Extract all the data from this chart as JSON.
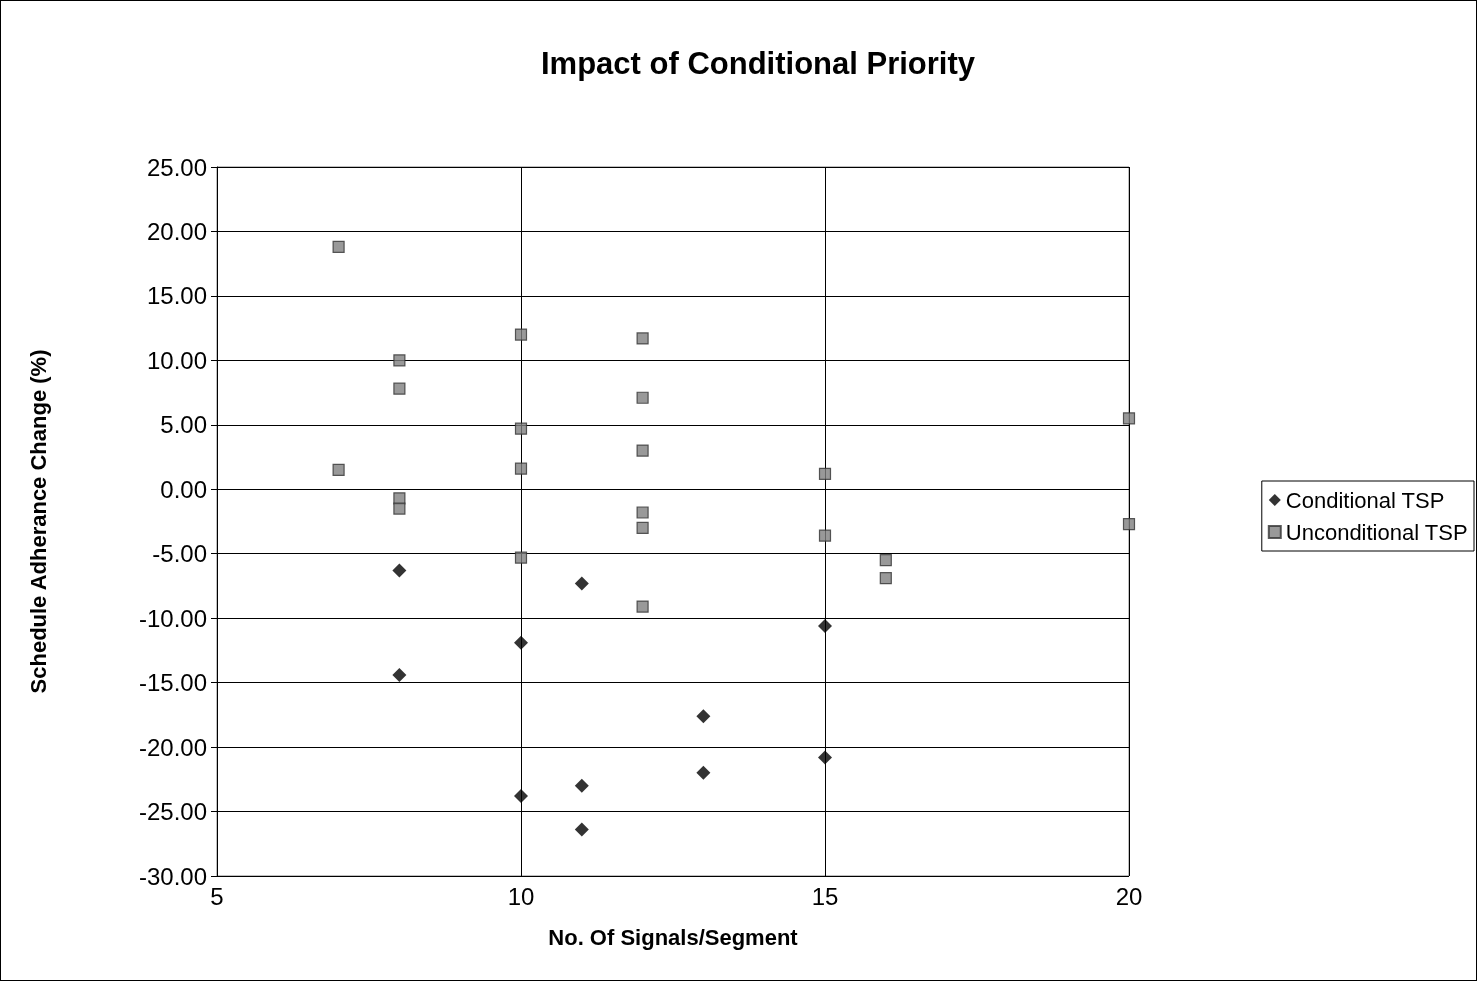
{
  "chart_data": {
    "type": "scatter",
    "title": "Impact of Conditional Priority",
    "xlabel": "No. Of Signals/Segment",
    "ylabel": "Schedule Adherance Change (%)",
    "series": [
      {
        "name": "Conditional TSP",
        "color": "#000000",
        "marker": "diamond",
        "x": [
          8,
          8,
          10,
          10,
          11,
          11,
          11,
          13,
          13,
          15,
          15
        ],
        "values": [
          -6.3,
          -14.4,
          -11.9,
          -23.8,
          -7.3,
          -23.0,
          -26.4,
          -17.6,
          -22.0,
          -10.6,
          -20.8
        ]
      },
      {
        "name": "Unconditional TSP",
        "color": "#808080",
        "marker": "square",
        "x": [
          7,
          8,
          8,
          7,
          8,
          8,
          10,
          10,
          10,
          10,
          12,
          12,
          12,
          12,
          12,
          12,
          15,
          15,
          16,
          16,
          20,
          20
        ],
        "values": [
          18.8,
          10.0,
          7.8,
          1.5,
          -0.7,
          -1.5,
          12.0,
          4.7,
          1.6,
          -5.3,
          11.7,
          7.1,
          3.0,
          -1.8,
          -3.0,
          -9.1,
          1.2,
          -3.6,
          -5.5,
          -6.9,
          5.5,
          -2.7
        ]
      }
    ],
    "xlim": [
      5,
      20
    ],
    "xticks": [
      5,
      10,
      15,
      20
    ],
    "ylim": [
      -30,
      25
    ],
    "yticks": [
      {
        "value": -30,
        "label": "-30.00"
      },
      {
        "value": -25,
        "label": "-25.00"
      },
      {
        "value": -20,
        "label": "-20.00"
      },
      {
        "value": -15,
        "label": "-15.00"
      },
      {
        "value": -10,
        "label": "-10.00"
      },
      {
        "value": -5,
        "label": "-5.00"
      },
      {
        "value": 0,
        "label": "0.00"
      },
      {
        "value": 5,
        "label": "5.00"
      },
      {
        "value": 10,
        "label": "10.00"
      },
      {
        "value": 15,
        "label": "15.00"
      },
      {
        "value": 20,
        "label": "20.00"
      },
      {
        "value": 25,
        "label": "25.00"
      }
    ],
    "grid": true,
    "legend": "right"
  }
}
